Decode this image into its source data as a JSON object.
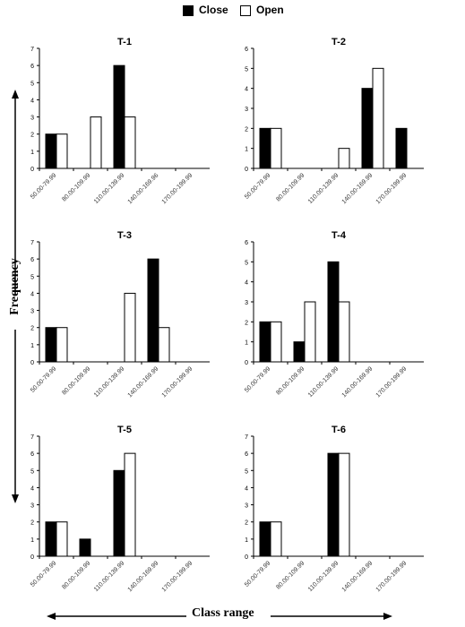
{
  "legend": {
    "close_label": "Close",
    "open_label": "Open",
    "close_color": "#000000",
    "open_color": "#ffffff"
  },
  "axis_labels": {
    "y": "Frequency",
    "x": "Class range"
  },
  "chart_data": [
    {
      "type": "bar",
      "title": "T-1",
      "categories": [
        "50.00-79.99",
        "80.00-109.99",
        "110.00-139.99",
        "140.00-169.96",
        "170.00-199.99"
      ],
      "ylim": [
        0,
        7
      ],
      "yticks": [
        0,
        1,
        2,
        3,
        4,
        5,
        6,
        7
      ],
      "series": [
        {
          "name": "Close",
          "values": [
            2,
            0,
            6,
            0,
            0
          ]
        },
        {
          "name": "Open",
          "values": [
            2,
            3,
            3,
            0,
            0
          ]
        }
      ]
    },
    {
      "type": "bar",
      "title": "T-2",
      "categories": [
        "50.00-79.99",
        "80.00-109.99",
        "110.00-139.99",
        "140.00-169.99",
        "170.00-199.99"
      ],
      "ylim": [
        0,
        6
      ],
      "yticks": [
        0,
        1,
        2,
        3,
        4,
        5,
        6
      ],
      "series": [
        {
          "name": "Close",
          "values": [
            2,
            0,
            0,
            4,
            2
          ]
        },
        {
          "name": "Open",
          "values": [
            2,
            0,
            1,
            5,
            0
          ]
        }
      ]
    },
    {
      "type": "bar",
      "title": "T-3",
      "categories": [
        "50.00-79.99",
        "80.00-109.99",
        "110.00-139.99",
        "140.00-169.99",
        "170.00-199.99"
      ],
      "ylim": [
        0,
        7
      ],
      "yticks": [
        0,
        1,
        2,
        3,
        4,
        5,
        6,
        7
      ],
      "series": [
        {
          "name": "Close",
          "values": [
            2,
            0,
            0,
            6,
            0
          ]
        },
        {
          "name": "Open",
          "values": [
            2,
            0,
            4,
            2,
            0
          ]
        }
      ]
    },
    {
      "type": "bar",
      "title": "T-4",
      "categories": [
        "50.00-79.99",
        "80.00-109.99",
        "110.00-139.99",
        "140.00-169.99",
        "170.00-199.99"
      ],
      "ylim": [
        0,
        6
      ],
      "yticks": [
        0,
        1,
        2,
        3,
        4,
        5,
        6
      ],
      "series": [
        {
          "name": "Close",
          "values": [
            2,
            1,
            5,
            0,
            0
          ]
        },
        {
          "name": "Open",
          "values": [
            2,
            3,
            3,
            0,
            0
          ]
        }
      ]
    },
    {
      "type": "bar",
      "title": "T-5",
      "categories": [
        "50.00-79.99",
        "80.00-109.99",
        "110.00-139.99",
        "140.00-169.99",
        "170.00-199.99"
      ],
      "ylim": [
        0,
        7
      ],
      "yticks": [
        0,
        1,
        2,
        3,
        4,
        5,
        6,
        7
      ],
      "series": [
        {
          "name": "Close",
          "values": [
            2,
            1,
            5,
            0,
            0
          ]
        },
        {
          "name": "Open",
          "values": [
            2,
            0,
            6,
            0,
            0
          ]
        }
      ]
    },
    {
      "type": "bar",
      "title": "T-6",
      "categories": [
        "50.00-79.99",
        "80.00-109.99",
        "110.00-139.99",
        "140.00-169.99",
        "170.00-199.99"
      ],
      "ylim": [
        0,
        7
      ],
      "yticks": [
        0,
        1,
        2,
        3,
        4,
        5,
        6,
        7
      ],
      "series": [
        {
          "name": "Close",
          "values": [
            2,
            0,
            6,
            0,
            0
          ]
        },
        {
          "name": "Open",
          "values": [
            2,
            0,
            6,
            0,
            0
          ]
        }
      ]
    }
  ]
}
